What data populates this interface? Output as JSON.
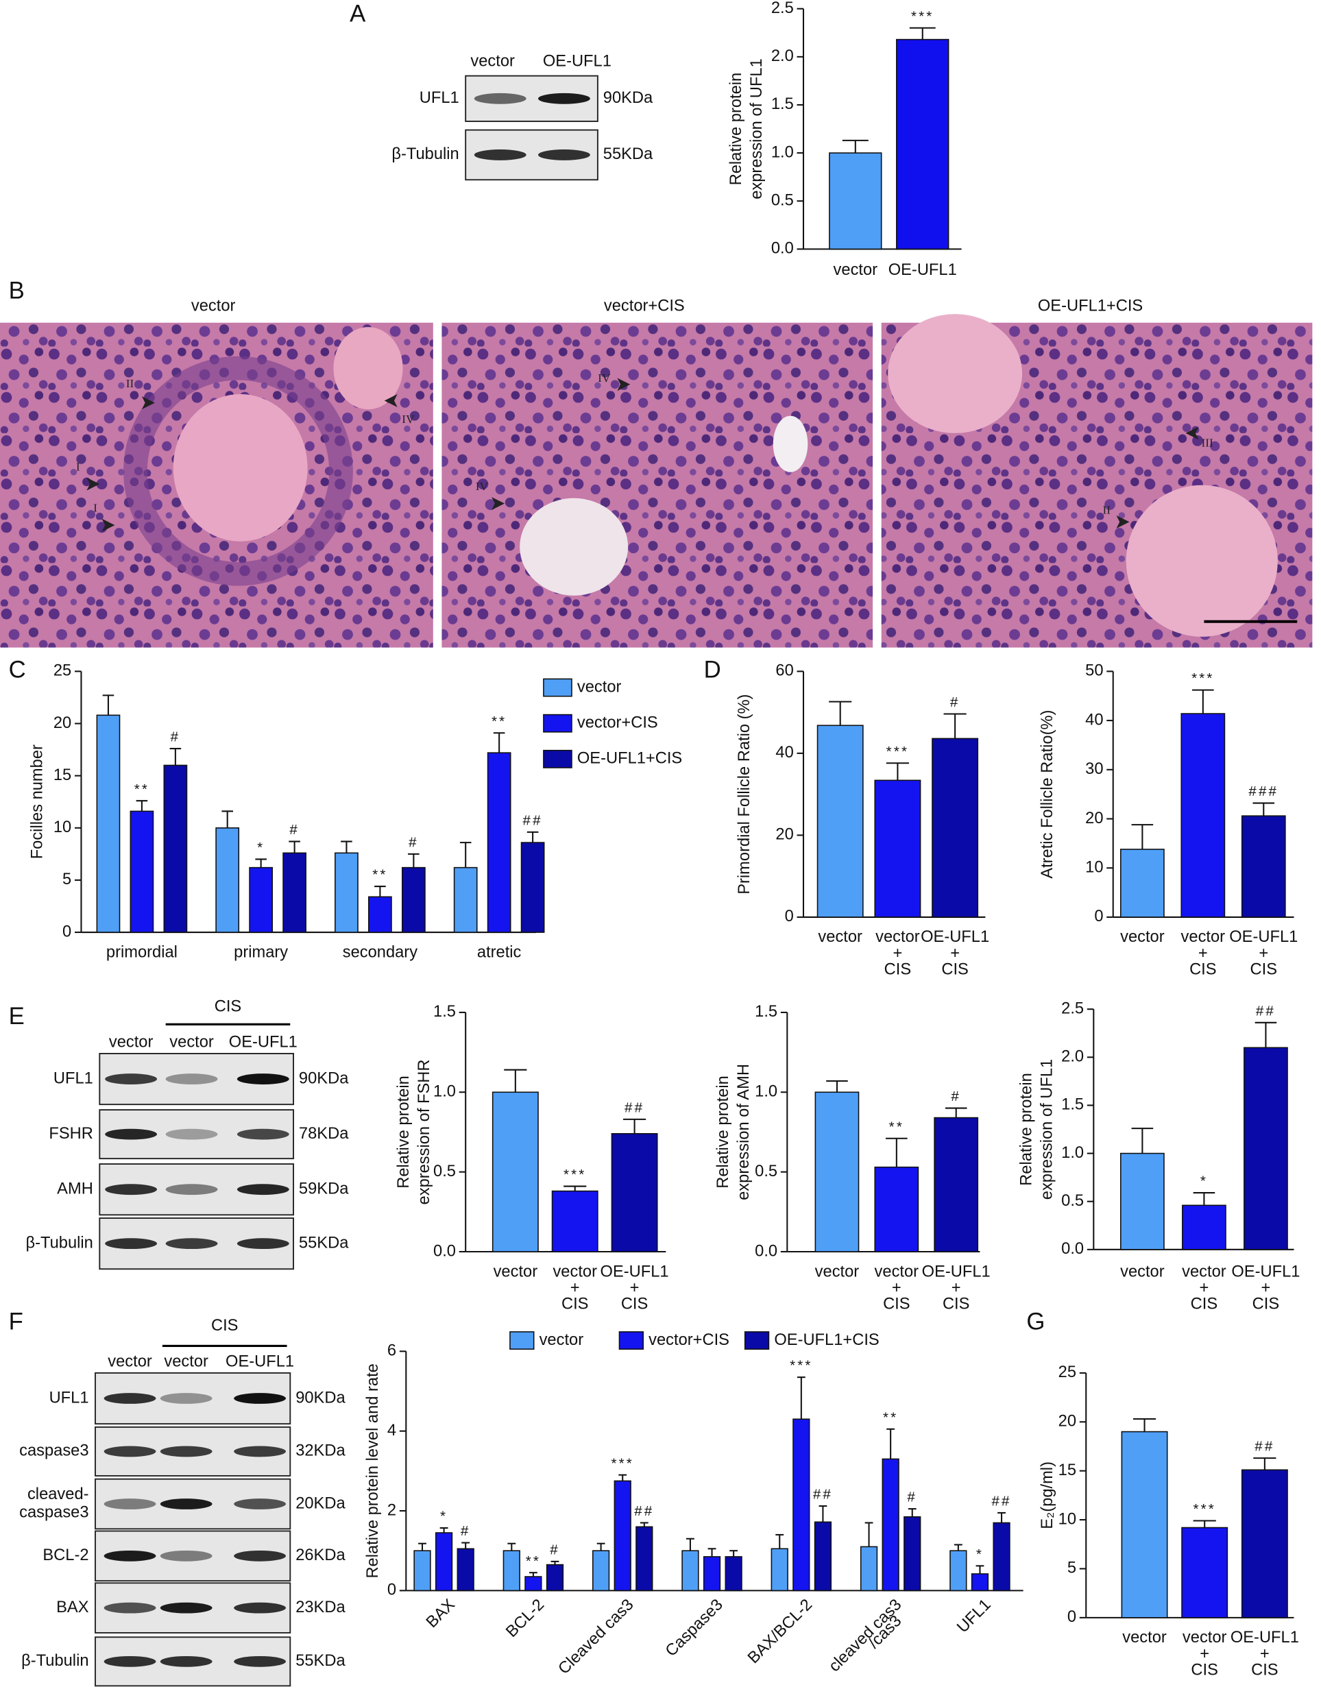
{
  "figure": {
    "panel_labels": [
      "A",
      "B",
      "C",
      "D",
      "E",
      "F",
      "G"
    ],
    "blots": [
      {
        "lanes": [
          "vector",
          "OE-UFL1"
        ],
        "rows": [
          {
            "protein": "UFL1",
            "size": "90KDa"
          },
          {
            "protein": "β-Tubulin",
            "size": "55KDa"
          }
        ]
      },
      {
        "group_label": "CIS",
        "lanes": [
          "vector",
          "vector",
          "OE-UFL1"
        ],
        "rows": [
          {
            "protein": "UFL1",
            "size": "90KDa"
          },
          {
            "protein": "FSHR",
            "size": "78KDa"
          },
          {
            "protein": "AMH",
            "size": "59KDa"
          },
          {
            "protein": "β-Tubulin",
            "size": "55KDa"
          }
        ]
      },
      {
        "group_label": "CIS",
        "lanes": [
          "vector",
          "vector",
          "OE-UFL1"
        ],
        "rows": [
          {
            "protein": "UFL1",
            "size": "90KDa"
          },
          {
            "protein": "caspase3",
            "size": "32KDa"
          },
          {
            "protein": [
              "cleaved-",
              "caspase3"
            ],
            "size": "20KDa"
          },
          {
            "protein": "BCL-2",
            "size": "26KDa"
          },
          {
            "protein": "BAX",
            "size": "23KDa"
          },
          {
            "protein": "β-Tubulin",
            "size": "55KDa"
          }
        ]
      }
    ],
    "micrographs": [
      {
        "title": "vector",
        "markers": [
          "II",
          "I",
          "I",
          "IV"
        ]
      },
      {
        "title": "vector+CIS",
        "markers": [
          "IV",
          "IV"
        ]
      },
      {
        "title": "OE-UFL1+CIS",
        "markers": [
          "III",
          "II"
        ]
      }
    ]
  },
  "chart_data": [
    {
      "type": "bar",
      "ylabel": [
        "Relative protein",
        "expression of UFL1"
      ],
      "categories": [
        "vector",
        "OE-UFL1"
      ],
      "values": [
        1.0,
        2.18
      ],
      "errors": [
        0.13,
        0.12
      ],
      "colors": [
        "#4f9ff7",
        "#1010ee"
      ],
      "significance": [
        null,
        "***"
      ],
      "ylim": [
        0,
        2.5
      ],
      "yticks": [
        {
          "value": 0,
          "label": "0.0"
        },
        0.5,
        {
          "value": 1,
          "label": "1.0"
        },
        1.5,
        {
          "value": 2,
          "label": "2.0"
        },
        2.5
      ]
    },
    {
      "type": "grouped-bar",
      "ylabel": "Focilles number",
      "categories": [
        "primordial",
        "primary",
        "secondary",
        "atretic"
      ],
      "legend": "upper right",
      "series": [
        {
          "name": "vector",
          "color": "#4f9ff7",
          "values": [
            20.8,
            10.0,
            7.6,
            6.2
          ],
          "errors": [
            1.9,
            1.6,
            1.1,
            2.4
          ],
          "significance": [
            null,
            null,
            null,
            null
          ]
        },
        {
          "name": "vector+CIS",
          "color": "#1414f0",
          "values": [
            11.6,
            6.2,
            3.4,
            17.2
          ],
          "errors": [
            1.0,
            0.8,
            1.0,
            1.9
          ],
          "significance": [
            "**",
            "*",
            "**",
            "**"
          ]
        },
        {
          "name": "OE-UFL1+CIS",
          "color": "#0a0aa8",
          "values": [
            16.0,
            7.6,
            6.2,
            8.6
          ],
          "errors": [
            1.6,
            1.1,
            1.3,
            1.0
          ],
          "significance": [
            "#",
            "#",
            "#",
            "##"
          ]
        }
      ],
      "ylim": [
        0,
        25
      ],
      "yticks": [
        0,
        5,
        10,
        15,
        20,
        25
      ]
    },
    {
      "type": "bar",
      "ylabel": "Primordial Follicle Ratio (%)",
      "categories": [
        [
          "vector"
        ],
        [
          "vector",
          "+",
          "CIS"
        ],
        [
          "OE-UFL1",
          "+",
          "CIS"
        ]
      ],
      "values": [
        46.8,
        33.4,
        43.6
      ],
      "errors": [
        5.8,
        4.2,
        6.0
      ],
      "colors": [
        "#4f9ff7",
        "#1414f0",
        "#0a0aa8"
      ],
      "significance": [
        null,
        "***",
        "#"
      ],
      "ylim": [
        0,
        60
      ],
      "yticks": [
        0,
        20,
        40,
        60
      ]
    },
    {
      "type": "bar",
      "ylabel": "Atretic Follicle Ratio(%)",
      "categories": [
        [
          "vector"
        ],
        [
          "vector",
          "+",
          "CIS"
        ],
        [
          "OE-UFL1",
          "+",
          "CIS"
        ]
      ],
      "values": [
        13.8,
        41.4,
        20.6
      ],
      "errors": [
        5.0,
        4.8,
        2.6
      ],
      "colors": [
        "#4f9ff7",
        "#1414f0",
        "#0a0aa8"
      ],
      "significance": [
        null,
        "***",
        "###"
      ],
      "ylim": [
        0,
        50
      ],
      "yticks": [
        0,
        10,
        20,
        30,
        40,
        50
      ]
    },
    {
      "type": "bar",
      "ylabel": [
        "Relative protein",
        "expression of FSHR"
      ],
      "categories": [
        [
          "vector"
        ],
        [
          "vector",
          "+",
          "CIS"
        ],
        [
          "OE-UFL1",
          "+",
          "CIS"
        ]
      ],
      "values": [
        1.0,
        0.38,
        0.74
      ],
      "errors": [
        0.14,
        0.03,
        0.09
      ],
      "colors": [
        "#4f9ff7",
        "#1414f0",
        "#0a0aa8"
      ],
      "significance": [
        null,
        "***",
        "##"
      ],
      "ylim": [
        0,
        1.5
      ],
      "yticks": [
        {
          "value": 0,
          "label": "0.0"
        },
        0.5,
        {
          "value": 1,
          "label": "1.0"
        },
        1.5
      ]
    },
    {
      "type": "bar",
      "ylabel": [
        "Relative protein",
        "expression of AMH"
      ],
      "categories": [
        [
          "vector"
        ],
        [
          "vector",
          "+",
          "CIS"
        ],
        [
          "OE-UFL1",
          "+",
          "CIS"
        ]
      ],
      "values": [
        1.0,
        0.53,
        0.84
      ],
      "errors": [
        0.07,
        0.18,
        0.06
      ],
      "colors": [
        "#4f9ff7",
        "#1414f0",
        "#0a0aa8"
      ],
      "significance": [
        null,
        "**",
        "#"
      ],
      "ylim": [
        0,
        1.5
      ],
      "yticks": [
        {
          "value": 0,
          "label": "0.0"
        },
        0.5,
        {
          "value": 1,
          "label": "1.0"
        },
        1.5
      ]
    },
    {
      "type": "bar",
      "ylabel": [
        "Relative protein",
        "expression of UFL1"
      ],
      "categories": [
        [
          "vector"
        ],
        [
          "vector",
          "+",
          "CIS"
        ],
        [
          "OE-UFL1",
          "+",
          "CIS"
        ]
      ],
      "values": [
        1.0,
        0.46,
        2.1
      ],
      "errors": [
        0.26,
        0.13,
        0.26
      ],
      "colors": [
        "#4f9ff7",
        "#1414f0",
        "#0a0aa8"
      ],
      "significance": [
        null,
        "*",
        "##"
      ],
      "ylim": [
        0,
        2.5
      ],
      "yticks": [
        {
          "value": 0,
          "label": "0.0"
        },
        0.5,
        {
          "value": 1,
          "label": "1.0"
        },
        1.5,
        {
          "value": 2,
          "label": "2.0"
        },
        2.5
      ]
    },
    {
      "type": "grouped-bar",
      "ylabel": "Relative protein level and rate",
      "categories": [
        [
          "BAX"
        ],
        [
          "BCL-2"
        ],
        [
          "Cleaved cas3"
        ],
        [
          "Caspase3"
        ],
        [
          "BAX/BCL-2"
        ],
        [
          "cleaved cas3",
          "/cas3"
        ],
        [
          "UFL1"
        ]
      ],
      "legend": "top",
      "series": [
        {
          "name": "vector",
          "color": "#4f9ff7",
          "values": [
            1.0,
            1.0,
            1.0,
            1.0,
            1.05,
            1.1,
            1.0
          ],
          "errors": [
            0.18,
            0.18,
            0.18,
            0.3,
            0.35,
            0.6,
            0.15
          ],
          "significance": [
            null,
            null,
            null,
            null,
            null,
            null,
            null
          ]
        },
        {
          "name": "vector+CIS",
          "color": "#1414f0",
          "values": [
            1.45,
            0.35,
            2.75,
            0.85,
            4.3,
            3.3,
            0.42
          ],
          "errors": [
            0.12,
            0.1,
            0.15,
            0.2,
            1.05,
            0.75,
            0.2
          ],
          "significance": [
            "*",
            "**",
            "***",
            null,
            "***",
            "**",
            "*"
          ]
        },
        {
          "name": "OE-UFL1+CIS",
          "color": "#0a0aa8",
          "values": [
            1.05,
            0.65,
            1.6,
            0.85,
            1.72,
            1.85,
            1.7
          ],
          "errors": [
            0.15,
            0.08,
            0.1,
            0.15,
            0.4,
            0.2,
            0.25
          ],
          "significance": [
            "#",
            "#",
            "##",
            null,
            "##",
            "#",
            "##"
          ]
        }
      ],
      "ylim": [
        0,
        6
      ],
      "yticks": [
        0,
        2,
        4,
        6
      ]
    },
    {
      "type": "bar",
      "ylabel": "E₂(pg/ml)",
      "categories": [
        [
          "vector"
        ],
        [
          "vector",
          "+",
          "CIS"
        ],
        [
          "OE-UFL1",
          "+",
          "CIS"
        ]
      ],
      "values": [
        19.0,
        9.2,
        15.1
      ],
      "errors": [
        1.3,
        0.7,
        1.2
      ],
      "colors": [
        "#4f9ff7",
        "#1414f0",
        "#0a0aa8"
      ],
      "significance": [
        null,
        "***",
        "##"
      ],
      "ylim": [
        0,
        25
      ],
      "yticks": [
        0,
        5,
        10,
        15,
        20,
        25
      ]
    }
  ]
}
